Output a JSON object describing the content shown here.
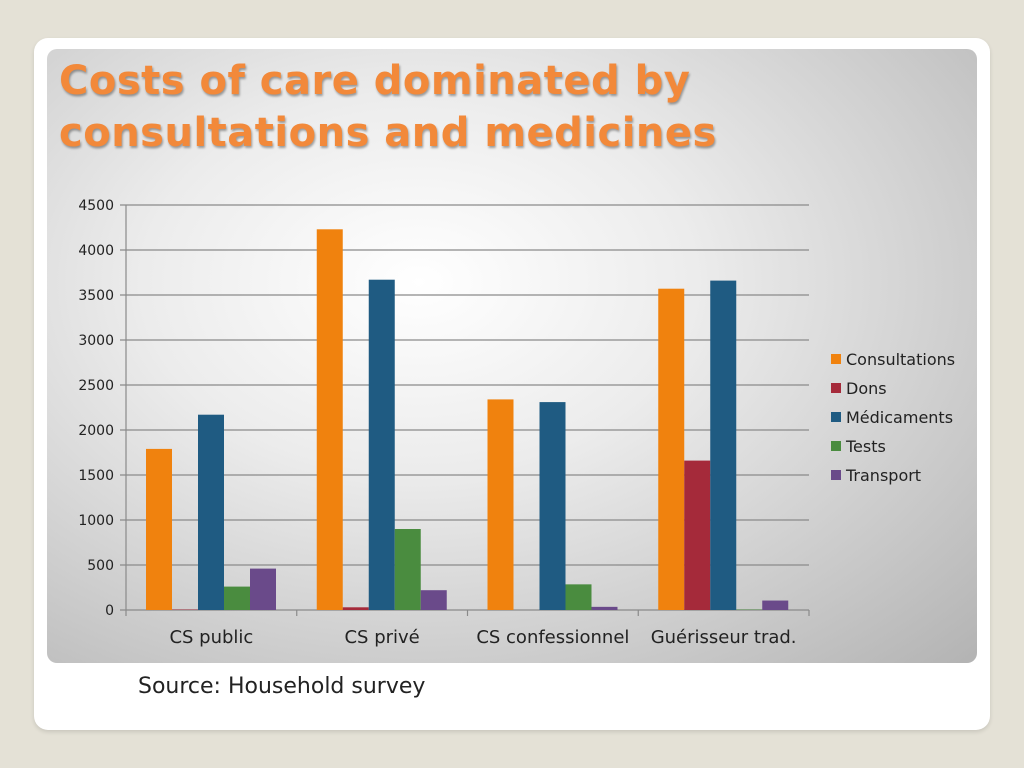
{
  "slide": {
    "title_line1": "Costs of care dominated by",
    "title_line2": "consultations and medicines",
    "source": "Source: Household survey"
  },
  "colors": {
    "title": "#f2893a",
    "Consultations": "#f0820e",
    "Dons": "#a52a3a",
    "Médicaments": "#1f5b82",
    "Tests": "#4a8c3f",
    "Transport": "#6a4a8a"
  },
  "chart_data": {
    "type": "bar",
    "title": "",
    "xlabel": "",
    "ylabel": "",
    "ylim": [
      0,
      4500
    ],
    "yticks": [
      0,
      500,
      1000,
      1500,
      2000,
      2500,
      3000,
      3500,
      4000,
      4500
    ],
    "grid": true,
    "legend_position": "right",
    "categories": [
      "CS public",
      "CS privé",
      "CS confessionnel",
      "Guérisseur trad."
    ],
    "series": [
      {
        "name": "Consultations",
        "values": [
          1790,
          4230,
          2340,
          3570
        ]
      },
      {
        "name": "Dons",
        "values": [
          5,
          30,
          0,
          1660
        ]
      },
      {
        "name": "Médicaments",
        "values": [
          2170,
          3670,
          2310,
          3660
        ]
      },
      {
        "name": "Tests",
        "values": [
          260,
          900,
          285,
          5
        ]
      },
      {
        "name": "Transport",
        "values": [
          460,
          220,
          35,
          105
        ]
      }
    ]
  }
}
